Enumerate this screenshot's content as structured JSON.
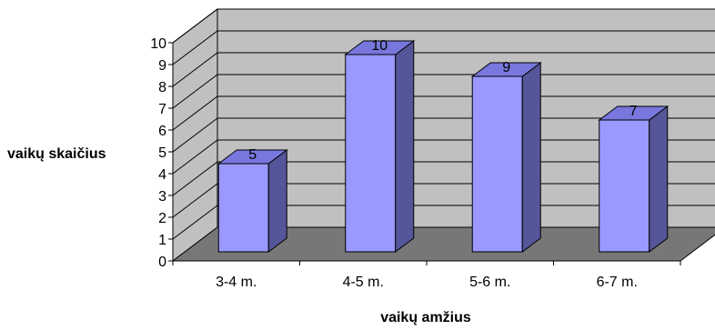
{
  "chart_data": {
    "type": "bar",
    "categories": [
      "3-4 m.",
      "4-5 m.",
      "5-6 m.",
      "6-7 m."
    ],
    "values": [
      5,
      10,
      9,
      7
    ],
    "title": "",
    "xlabel": "vaikų amžius",
    "ylabel": "vaikų skaičius",
    "ylim": [
      0,
      10
    ],
    "yticks": [
      0,
      1,
      2,
      3,
      4,
      5,
      6,
      7,
      8,
      9,
      10
    ],
    "grid": true,
    "style": "3d",
    "data_labels": true,
    "legend": "none"
  },
  "colors": {
    "bar_front": "#9999ff",
    "bar_side": "#555599",
    "bar_top": "#7777dd",
    "wall": "#c0c0c0",
    "floor": "#777777",
    "grid": "#000000"
  }
}
